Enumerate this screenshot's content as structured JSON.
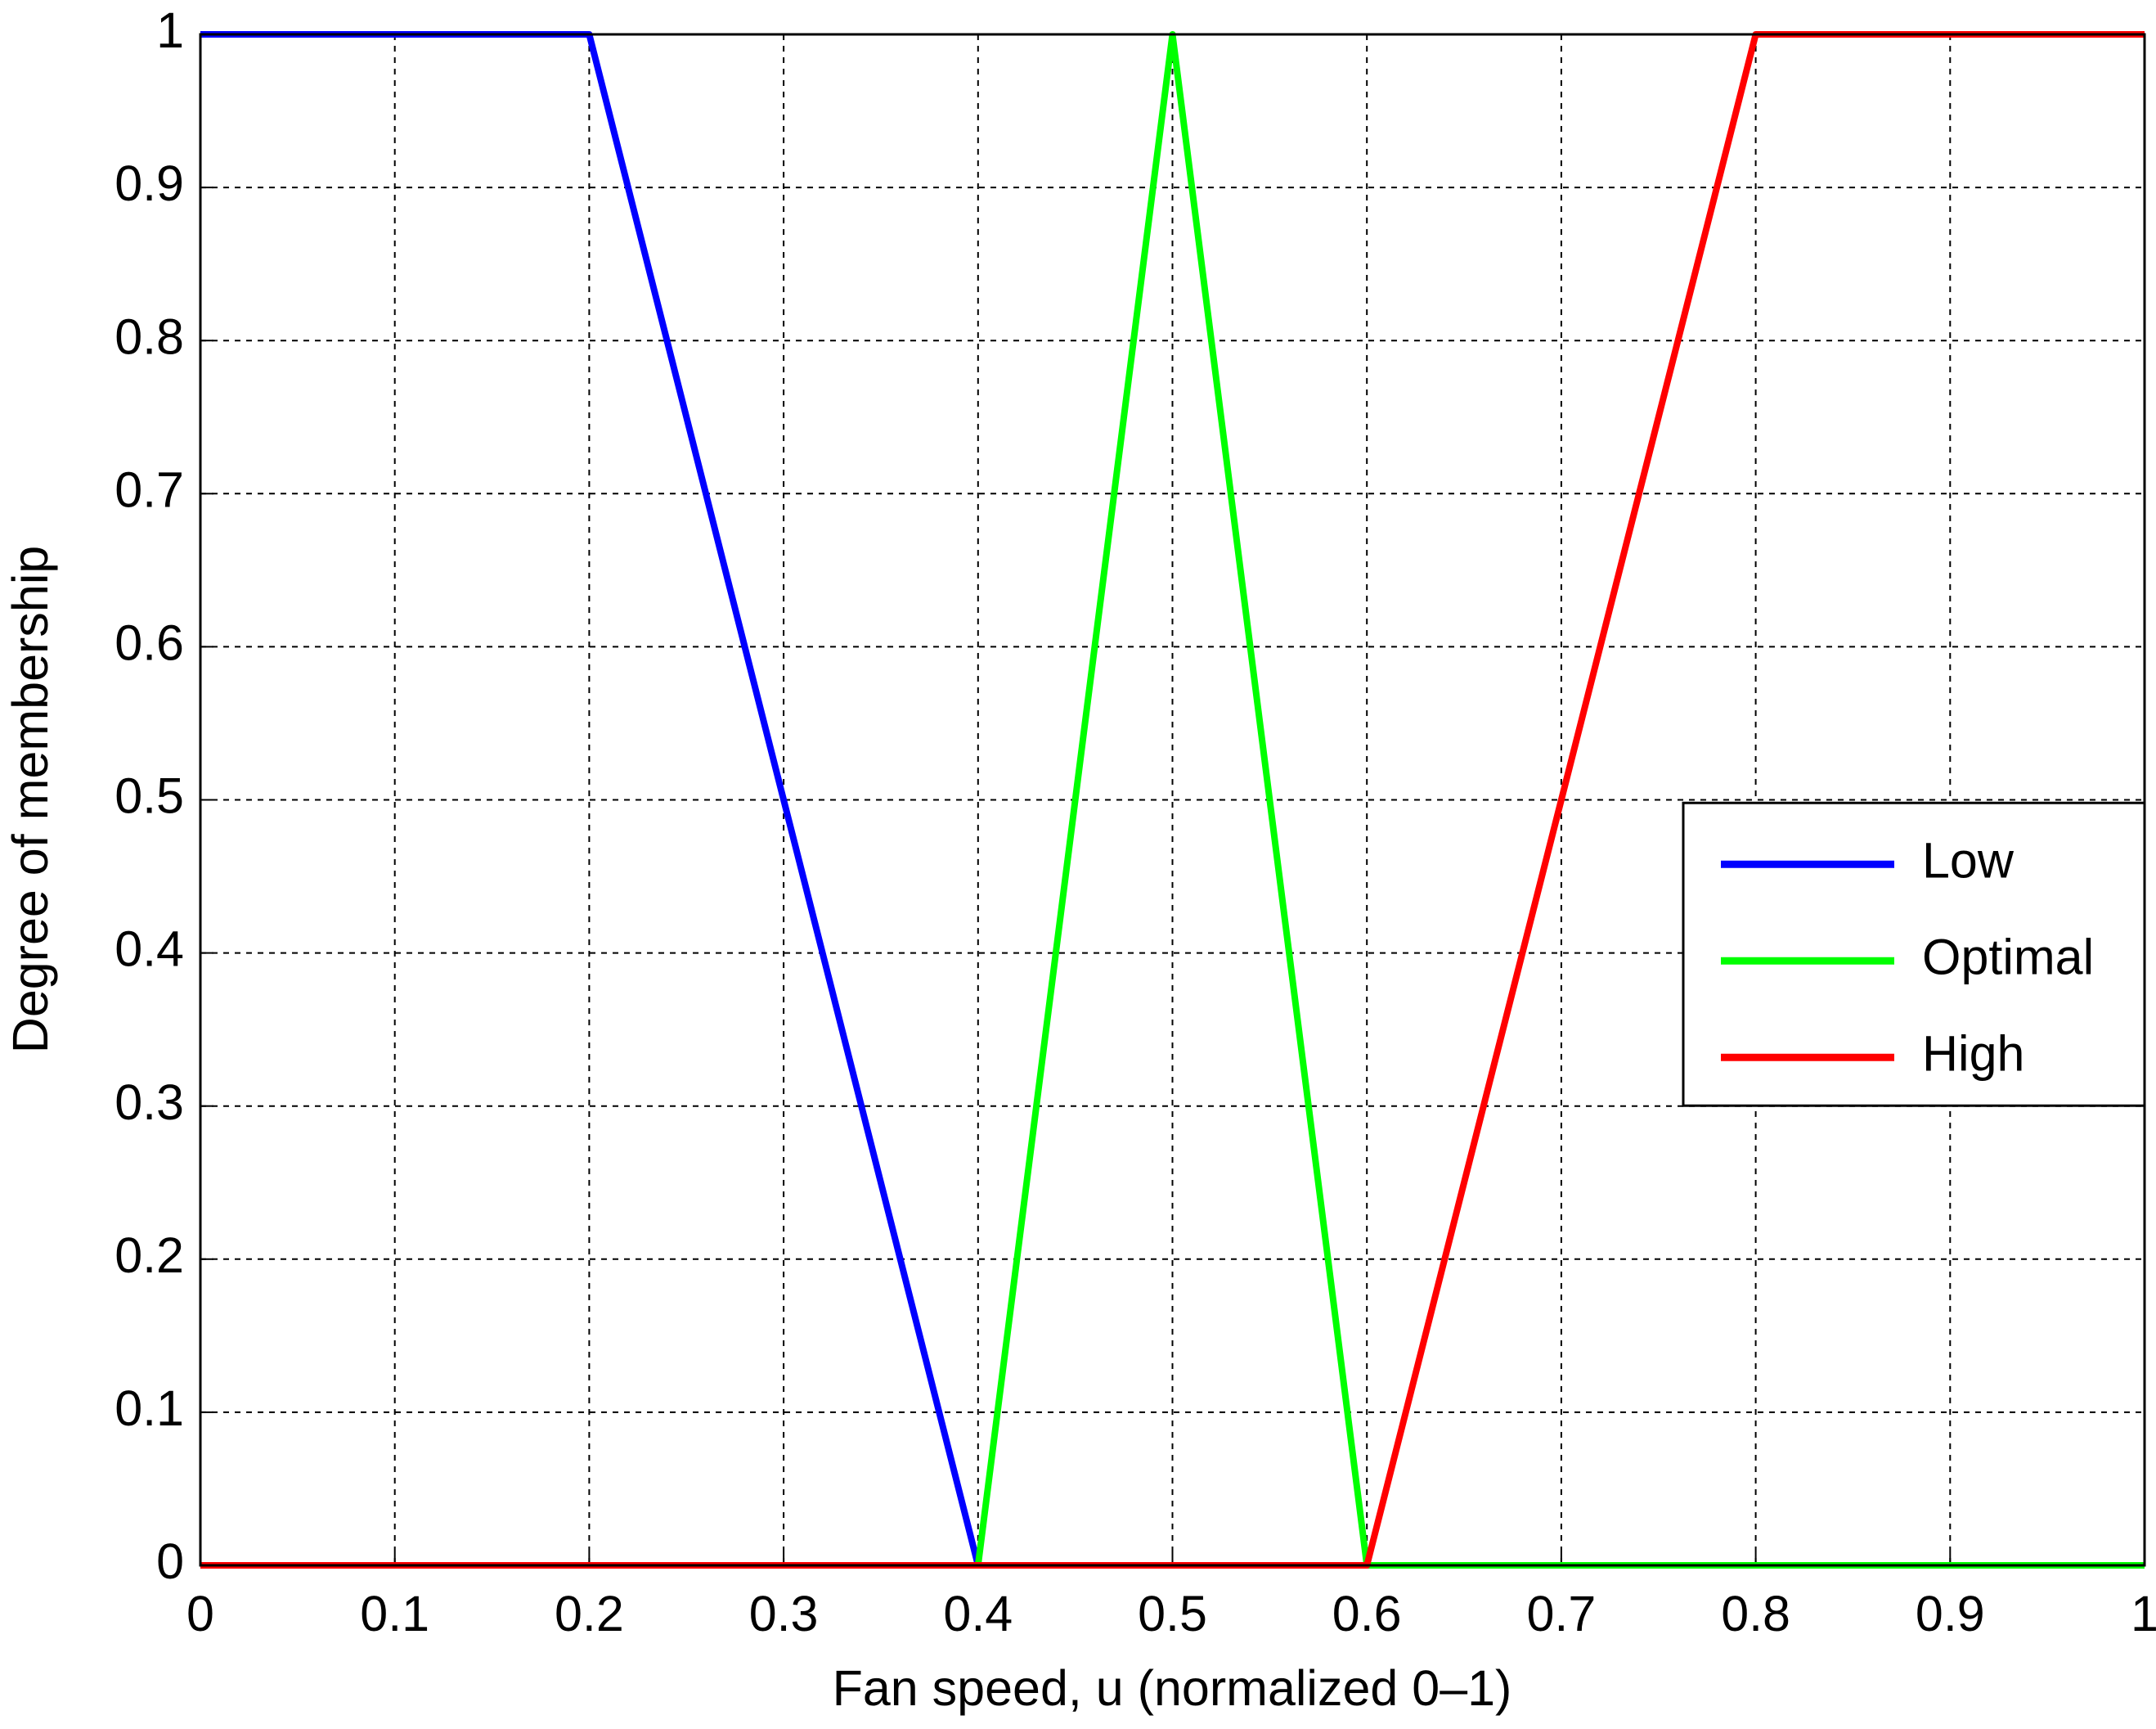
{
  "chart_data": {
    "type": "line",
    "xlabel": "Fan speed, u (normalized 0–1)",
    "ylabel": "Degree of membership",
    "series": [
      {
        "name": "Low",
        "color": "#0000ff",
        "x": [
          0,
          0.2,
          0.4,
          1
        ],
        "values": [
          1,
          1,
          0,
          0
        ]
      },
      {
        "name": "Optimal",
        "color": "#00ff00",
        "x": [
          0,
          0.4,
          0.5,
          0.6,
          1
        ],
        "values": [
          0,
          0,
          1,
          0,
          0
        ]
      },
      {
        "name": "High",
        "color": "#ff0000",
        "x": [
          0,
          0.6,
          0.8,
          1
        ],
        "values": [
          0,
          0,
          1,
          1
        ]
      }
    ],
    "xlim": [
      0,
      1
    ],
    "ylim": [
      0,
      1
    ],
    "xticks": [
      0,
      0.1,
      0.2,
      0.3,
      0.4,
      0.5,
      0.6,
      0.7,
      0.8,
      0.9,
      1
    ],
    "yticks": [
      0,
      0.1,
      0.2,
      0.3,
      0.4,
      0.5,
      0.6,
      0.7,
      0.8,
      0.9,
      1
    ],
    "grid": true,
    "legend": "right"
  }
}
